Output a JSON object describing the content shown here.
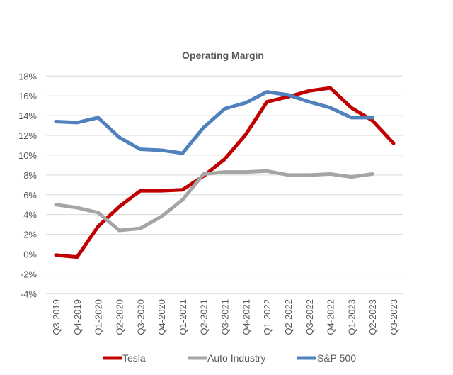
{
  "chart_data": {
    "type": "line",
    "title": "Operating Margin",
    "xlabel": "",
    "ylabel": "",
    "categories": [
      "Q3-2019",
      "Q4-2019",
      "Q1-2020",
      "Q2-2020",
      "Q3-2020",
      "Q4-2020",
      "Q1-2021",
      "Q2-2021",
      "Q3-2021",
      "Q4-2021",
      "Q1-2022",
      "Q2-2022",
      "Q3-2022",
      "Q4-2022",
      "Q1-2023",
      "Q2-2023",
      "Q3-2023"
    ],
    "ylim": [
      -4,
      18
    ],
    "yticks": [
      -4,
      -2,
      0,
      2,
      4,
      6,
      8,
      10,
      12,
      14,
      16,
      18
    ],
    "ytick_labels": [
      "-4%",
      "-2%",
      "0%",
      "2%",
      "4%",
      "6%",
      "8%",
      "10%",
      "12%",
      "14%",
      "16%",
      "18%"
    ],
    "grid": true,
    "legend_position": "bottom",
    "series": [
      {
        "name": "Tesla",
        "color": "#C00000",
        "values": [
          -0.1,
          -0.3,
          2.8,
          4.8,
          6.4,
          6.4,
          6.5,
          7.9,
          9.6,
          12.1,
          15.4,
          15.9,
          16.5,
          16.8,
          14.8,
          13.5,
          11.2
        ]
      },
      {
        "name": "Auto Industry",
        "color": "#A5A5A5",
        "values": [
          5.0,
          4.7,
          4.2,
          2.4,
          2.6,
          3.8,
          5.5,
          8.1,
          8.3,
          8.3,
          8.4,
          8.0,
          8.0,
          8.1,
          7.8,
          8.1,
          null
        ]
      },
      {
        "name": "S&P 500",
        "color": "#4F81BD",
        "values": [
          13.4,
          13.3,
          13.8,
          11.8,
          10.6,
          10.5,
          10.2,
          12.8,
          14.7,
          15.3,
          16.4,
          16.1,
          15.4,
          14.8,
          13.8,
          13.8,
          null
        ]
      }
    ]
  }
}
